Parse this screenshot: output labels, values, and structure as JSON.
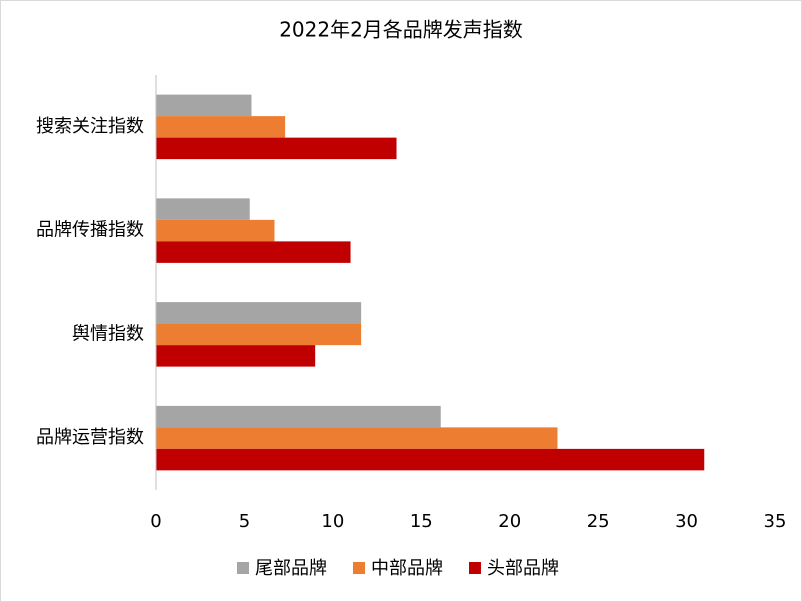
{
  "chart_data": {
    "type": "hbar",
    "title": "2022年2月各品牌发声指数",
    "categories": [
      "搜索关注指数",
      "品牌传播指数",
      "舆情指数",
      "品牌运营指数"
    ],
    "series": [
      {
        "name": "尾部品牌",
        "color": "#a5a5a5",
        "values": [
          5.4,
          5.3,
          11.6,
          16.1
        ]
      },
      {
        "name": "中部品牌",
        "color": "#ed7d31",
        "values": [
          7.3,
          6.7,
          11.6,
          22.7
        ]
      },
      {
        "name": "头部品牌",
        "color": "#c00000",
        "values": [
          13.6,
          11.0,
          9.0,
          31.0
        ]
      }
    ],
    "xlim": [
      0,
      35
    ],
    "xticks": [
      0,
      5,
      10,
      15,
      20,
      25,
      30,
      35
    ],
    "grid": false,
    "legend": "bottom"
  }
}
